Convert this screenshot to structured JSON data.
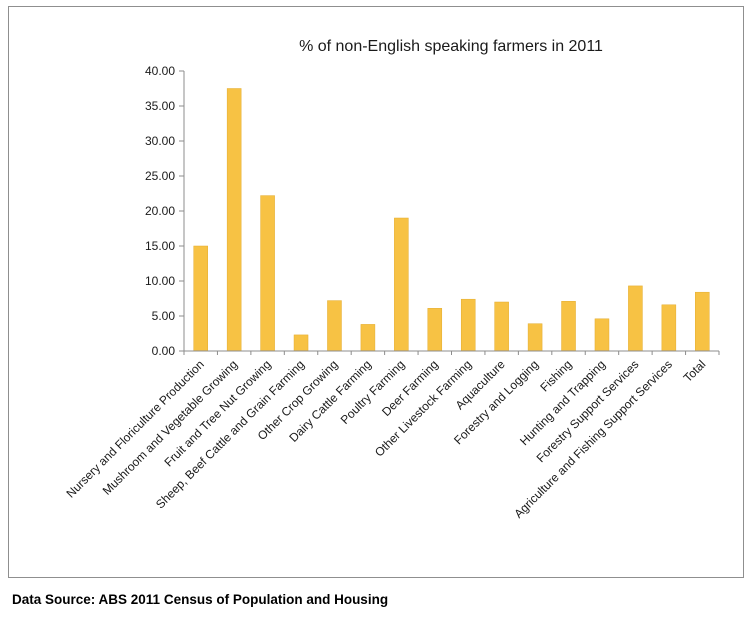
{
  "chart_data": {
    "type": "bar",
    "title": "% of non-English speaking farmers in 2011",
    "categories": [
      "Nursery and Floriculture Production",
      "Mushroom and Vegetable Growing",
      "Fruit and Tree Nut Growing",
      "Sheep, Beef Cattle and Grain Farming",
      "Other Crop Growing",
      "Dairy Cattle Farming",
      "Poultry Farming",
      "Deer Farming",
      "Other Livestock Farming",
      "Aquaculture",
      "Forestry and Logging",
      "Fishing",
      "Hunting and Trapping",
      "Forestry Support Services",
      "Agriculture and Fishing Support Services",
      "Total"
    ],
    "values": [
      15.0,
      37.5,
      22.2,
      2.3,
      7.2,
      3.8,
      19.0,
      6.1,
      7.4,
      7.0,
      3.9,
      7.1,
      4.6,
      9.3,
      6.6,
      8.4
    ],
    "xlabel": "",
    "ylabel": "",
    "ylim": [
      0,
      40
    ],
    "ytick_step": 5,
    "ytick_decimals": 2,
    "grid": false,
    "legend_position": "none",
    "bar_color": "#F7C244",
    "bar_edge_color": "#E3AC2F",
    "axis_color": "#8c8c8c",
    "text_color": "#1a1a1a"
  },
  "footer": {
    "text": "Data Source: ABS 2011 Census of Population and Housing"
  }
}
